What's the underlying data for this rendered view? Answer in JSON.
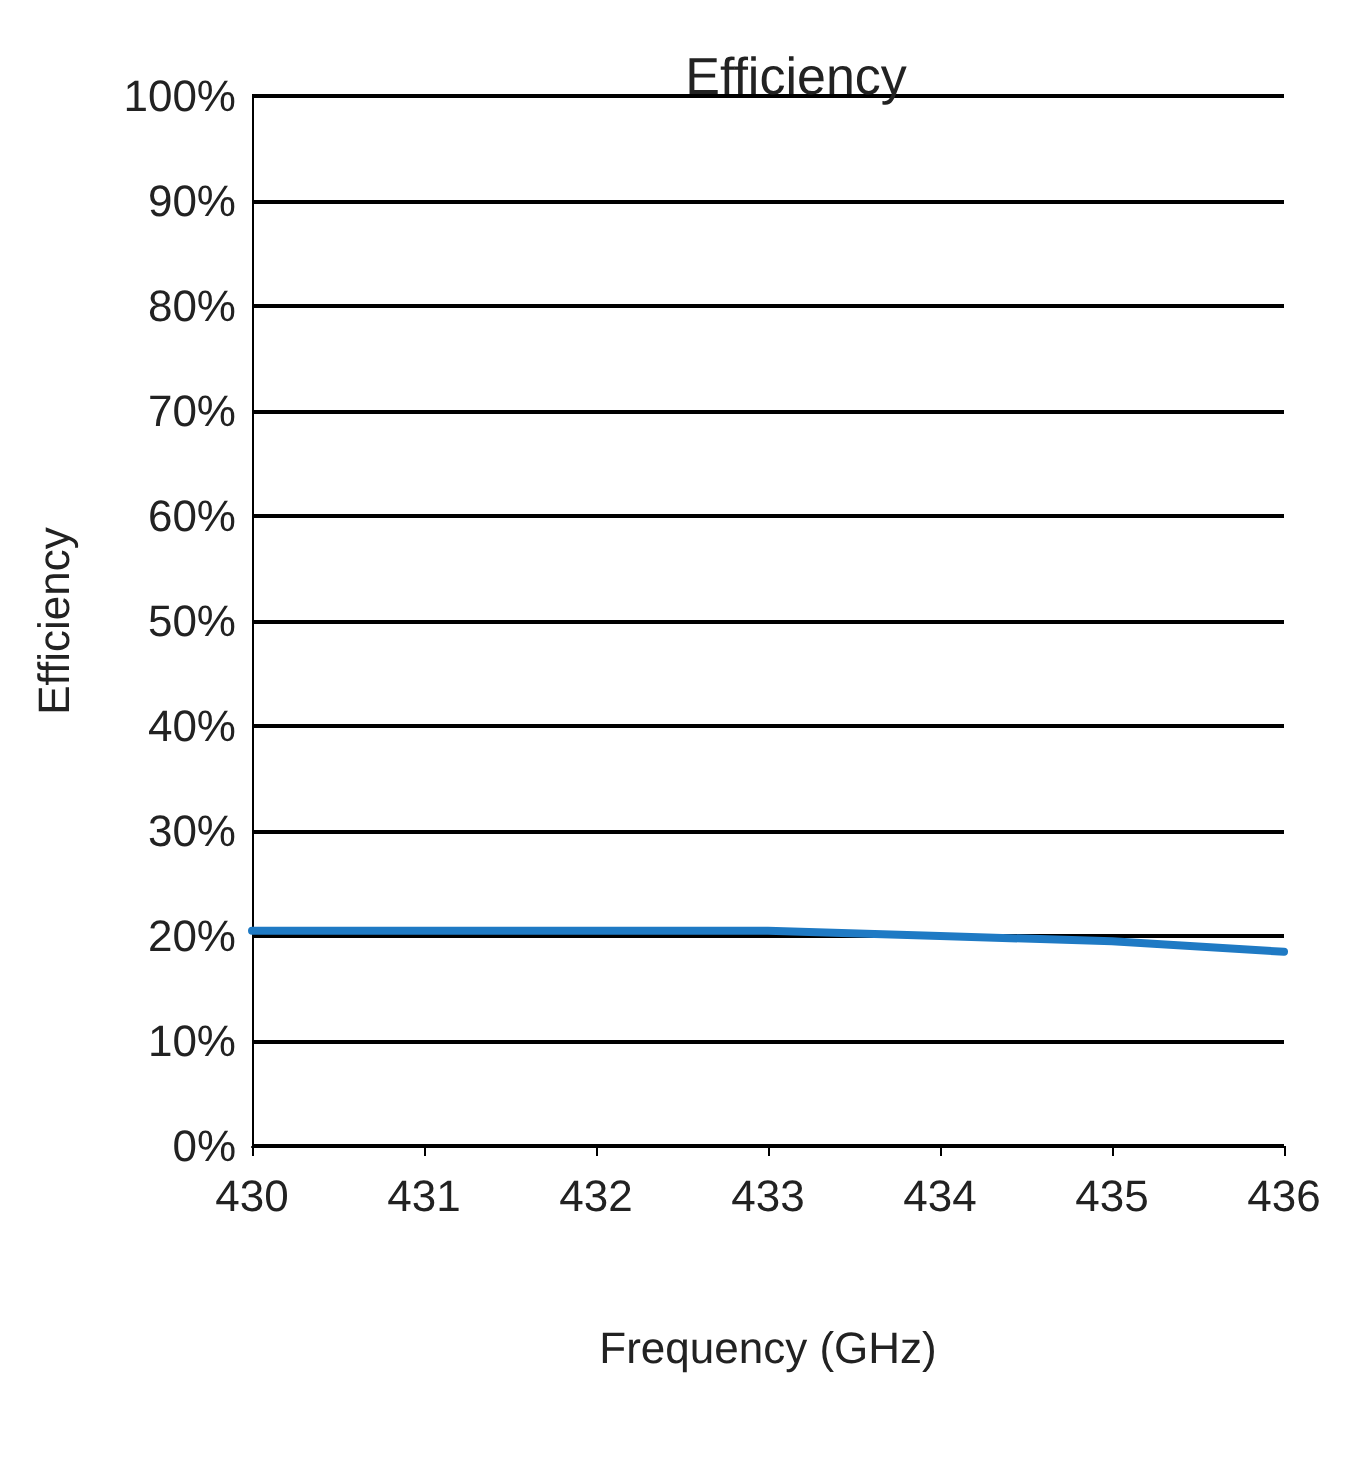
{
  "chart_data": {
    "type": "line",
    "title": "Efficiency",
    "xlabel": "Frequency (GHz)",
    "ylabel": "Efficiency",
    "x": [
      430,
      431,
      432,
      433,
      434,
      435,
      436
    ],
    "series": [
      {
        "color": "#1f7ac4",
        "values": [
          20.5,
          20.5,
          20.5,
          20.5,
          20,
          19.5,
          18.5
        ]
      }
    ],
    "xlim": [
      430,
      436
    ],
    "xticks": [
      430,
      431,
      432,
      433,
      434,
      435,
      436
    ],
    "ylim": [
      0,
      100
    ],
    "yticks": [
      {
        "value": 0,
        "label": "0%"
      },
      {
        "value": 10,
        "label": "10%"
      },
      {
        "value": 20,
        "label": "20%"
      },
      {
        "value": 30,
        "label": "30%"
      },
      {
        "value": 40,
        "label": "40%"
      },
      {
        "value": 50,
        "label": "50%"
      },
      {
        "value": 60,
        "label": "60%"
      },
      {
        "value": 70,
        "label": "70%"
      },
      {
        "value": 80,
        "label": "80%"
      },
      {
        "value": 90,
        "label": "90%"
      },
      {
        "value": 100,
        "label": "100%"
      }
    ],
    "grid": "y",
    "marker": "none",
    "line_style": "solid"
  }
}
